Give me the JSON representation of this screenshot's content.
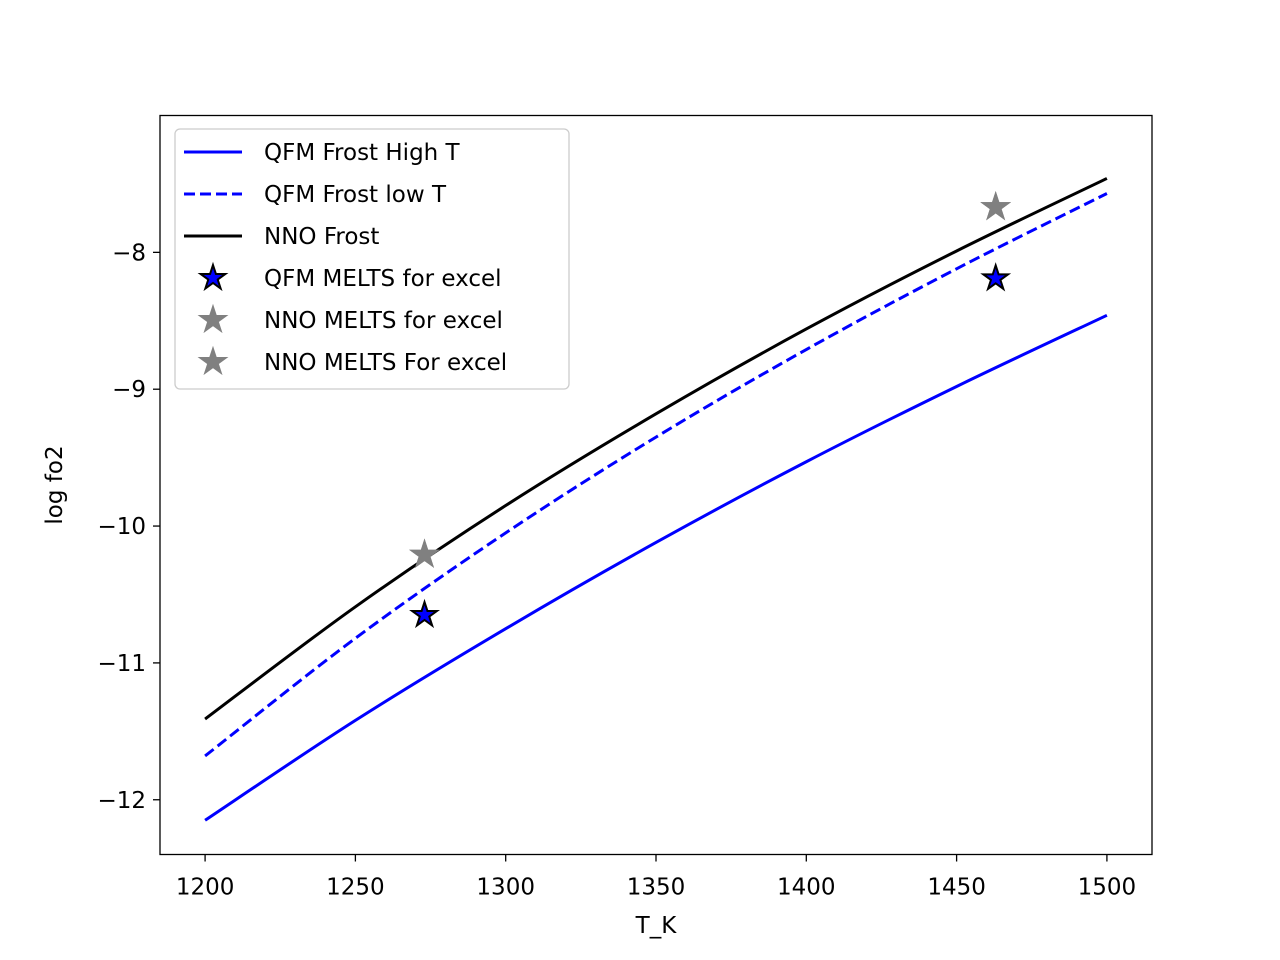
{
  "chart_data": {
    "type": "line",
    "xlabel": "T_K",
    "ylabel": "log fo2",
    "xlim": [
      1185,
      1515
    ],
    "ylim": [
      -12.4,
      -7.0
    ],
    "xticks": [
      1200,
      1250,
      1300,
      1350,
      1400,
      1450,
      1500
    ],
    "yticks": [
      -12,
      -11,
      -10,
      -9,
      -8
    ],
    "xtick_labels": [
      "1200",
      "1250",
      "1300",
      "1350",
      "1400",
      "1450",
      "1500"
    ],
    "ytick_labels": [
      "−12",
      "−11",
      "−10",
      "−9",
      "−8"
    ],
    "grid": false,
    "legend_position": "upper left",
    "series": [
      {
        "name": "QFM Frost High T",
        "kind": "line",
        "style": "solid",
        "color": "#0000ff",
        "x": [
          1200,
          1250,
          1300,
          1350,
          1400,
          1450,
          1500
        ],
        "y": [
          -12.15,
          -11.42,
          -10.75,
          -10.12,
          -9.53,
          -8.98,
          -8.46
        ]
      },
      {
        "name": "QFM Frost low T",
        "kind": "line",
        "style": "dashed",
        "color": "#0000ff",
        "x": [
          1200,
          1250,
          1300,
          1350,
          1400,
          1450,
          1500
        ],
        "y": [
          -11.68,
          -10.82,
          -10.05,
          -9.35,
          -8.71,
          -8.12,
          -7.57
        ]
      },
      {
        "name": "NNO Frost",
        "kind": "line",
        "style": "solid",
        "color": "#000000",
        "x": [
          1200,
          1250,
          1300,
          1350,
          1400,
          1450,
          1500
        ],
        "y": [
          -11.41,
          -10.59,
          -9.85,
          -9.18,
          -8.56,
          -7.99,
          -7.46
        ]
      },
      {
        "name": "QFM MELTS for excel",
        "kind": "marker",
        "marker": "star",
        "color": "#0000ff",
        "edgecolor": "#000000",
        "x": [
          1273,
          1463
        ],
        "y": [
          -10.65,
          -8.19
        ]
      },
      {
        "name": "NNO MELTS for excel",
        "kind": "marker",
        "marker": "star",
        "color": "#808080",
        "edgecolor": "#808080",
        "x": [
          1273,
          1463
        ],
        "y": [
          -10.21,
          -7.67
        ]
      },
      {
        "name": "NNO MELTS For excel",
        "kind": "marker",
        "marker": "star",
        "color": "#808080",
        "edgecolor": "#808080",
        "x": [
          1273,
          1463
        ],
        "y": [
          -10.21,
          -7.67
        ]
      }
    ]
  }
}
